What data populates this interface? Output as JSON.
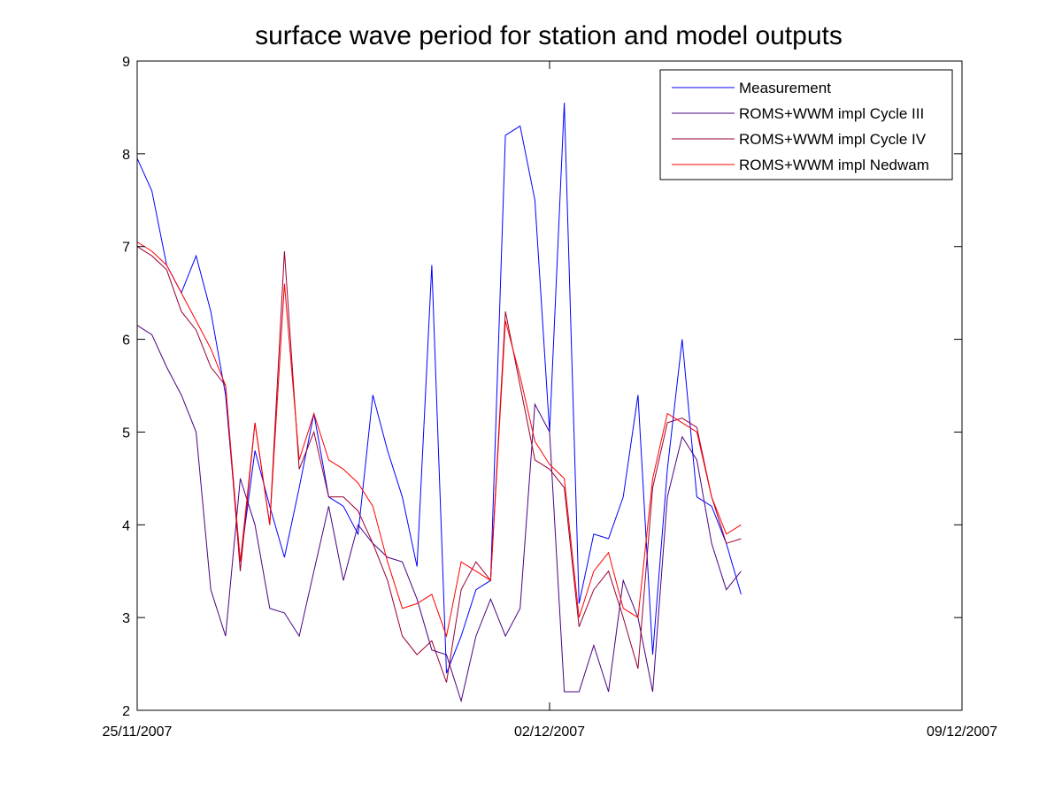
{
  "chart_data": {
    "type": "line",
    "title": "surface wave period for station and model outputs",
    "xlabel": "",
    "ylabel": "",
    "xlim": [
      "2007-11-25",
      "2007-12-09"
    ],
    "ylim": [
      2,
      9
    ],
    "x_ticks": [
      "25/11/2007",
      "02/12/2007",
      "09/12/2007"
    ],
    "y_ticks": [
      "2",
      "3",
      "4",
      "5",
      "6",
      "7",
      "8",
      "9"
    ],
    "grid": false,
    "legend_position": "top-right",
    "series": [
      {
        "name": "Measurement",
        "color": "#0000ff",
        "x": [
          "2007-11-25 00:00",
          "2007-11-25 06:00",
          "2007-11-25 12:00",
          "2007-11-25 18:00",
          "2007-11-26 00:00",
          "2007-11-26 06:00",
          "2007-11-26 12:00",
          "2007-11-26 18:00",
          "2007-11-27 00:00",
          "2007-11-27 06:00",
          "2007-11-27 12:00",
          "2007-11-27 18:00",
          "2007-11-28 00:00",
          "2007-11-28 06:00",
          "2007-11-28 12:00",
          "2007-11-28 18:00",
          "2007-11-29 00:00",
          "2007-11-29 06:00",
          "2007-11-29 12:00",
          "2007-11-29 18:00",
          "2007-11-30 00:00",
          "2007-11-30 06:00",
          "2007-11-30 12:00",
          "2007-11-30 18:00",
          "2007-12-01 00:00",
          "2007-12-01 06:00",
          "2007-12-01 12:00",
          "2007-12-01 18:00",
          "2007-12-02 00:00",
          "2007-12-02 06:00",
          "2007-12-02 12:00",
          "2007-12-02 18:00",
          "2007-12-03 00:00",
          "2007-12-03 06:00",
          "2007-12-03 12:00",
          "2007-12-03 18:00",
          "2007-12-04 00:00",
          "2007-12-04 06:00",
          "2007-12-04 12:00",
          "2007-12-04 18:00",
          "2007-12-05 00:00",
          "2007-12-05 06:00"
        ],
        "values": [
          7.95,
          7.6,
          6.8,
          6.5,
          6.9,
          6.3,
          5.4,
          3.6,
          4.8,
          4.2,
          3.65,
          4.4,
          5.2,
          4.3,
          4.2,
          3.9,
          5.4,
          4.8,
          4.3,
          3.55,
          6.8,
          2.4,
          2.8,
          3.3,
          3.4,
          8.2,
          8.3,
          7.5,
          5.0,
          8.55,
          3.15,
          3.9,
          3.85,
          4.3,
          5.4,
          2.6,
          4.6,
          6.0,
          4.3,
          4.2,
          3.8,
          3.25
        ]
      },
      {
        "name": "ROMS+WWM impl Cycle III",
        "color": "#4b0082",
        "x": [
          "2007-11-25 00:00",
          "2007-11-25 06:00",
          "2007-11-25 12:00",
          "2007-11-25 18:00",
          "2007-11-26 00:00",
          "2007-11-26 06:00",
          "2007-11-26 12:00",
          "2007-11-26 18:00",
          "2007-11-27 00:00",
          "2007-11-27 06:00",
          "2007-11-27 12:00",
          "2007-11-27 18:00",
          "2007-11-28 00:00",
          "2007-11-28 06:00",
          "2007-11-28 12:00",
          "2007-11-28 18:00",
          "2007-11-29 00:00",
          "2007-11-29 06:00",
          "2007-11-29 12:00",
          "2007-11-29 18:00",
          "2007-11-30 00:00",
          "2007-11-30 06:00",
          "2007-11-30 12:00",
          "2007-11-30 18:00",
          "2007-12-01 00:00",
          "2007-12-01 06:00",
          "2007-12-01 12:00",
          "2007-12-01 18:00",
          "2007-12-02 00:00",
          "2007-12-02 06:00",
          "2007-12-02 12:00",
          "2007-12-02 18:00",
          "2007-12-03 00:00",
          "2007-12-03 06:00",
          "2007-12-03 12:00",
          "2007-12-03 18:00",
          "2007-12-04 00:00",
          "2007-12-04 06:00",
          "2007-12-04 12:00",
          "2007-12-04 18:00",
          "2007-12-05 00:00",
          "2007-12-05 06:00"
        ],
        "values": [
          6.15,
          6.05,
          5.7,
          5.4,
          5.0,
          3.3,
          2.8,
          4.5,
          4.0,
          3.1,
          3.05,
          2.8,
          3.5,
          4.2,
          3.4,
          4.0,
          3.8,
          3.65,
          3.6,
          3.2,
          2.65,
          2.6,
          2.1,
          2.8,
          3.2,
          2.8,
          3.1,
          5.3,
          5.0,
          2.2,
          2.2,
          2.7,
          2.2,
          3.4,
          3.0,
          2.2,
          4.3,
          4.95,
          4.7,
          3.8,
          3.3,
          3.5
        ]
      },
      {
        "name": "ROMS+WWM impl Cycle IV",
        "color": "#990033",
        "x": [
          "2007-11-25 00:00",
          "2007-11-25 06:00",
          "2007-11-25 12:00",
          "2007-11-25 18:00",
          "2007-11-26 00:00",
          "2007-11-26 06:00",
          "2007-11-26 12:00",
          "2007-11-26 18:00",
          "2007-11-27 00:00",
          "2007-11-27 06:00",
          "2007-11-27 12:00",
          "2007-11-27 18:00",
          "2007-11-28 00:00",
          "2007-11-28 06:00",
          "2007-11-28 12:00",
          "2007-11-28 18:00",
          "2007-11-29 00:00",
          "2007-11-29 06:00",
          "2007-11-29 12:00",
          "2007-11-29 18:00",
          "2007-11-30 00:00",
          "2007-11-30 06:00",
          "2007-11-30 12:00",
          "2007-11-30 18:00",
          "2007-12-01 00:00",
          "2007-12-01 06:00",
          "2007-12-01 12:00",
          "2007-12-01 18:00",
          "2007-12-02 00:00",
          "2007-12-02 06:00",
          "2007-12-02 12:00",
          "2007-12-02 18:00",
          "2007-12-03 00:00",
          "2007-12-03 06:00",
          "2007-12-03 12:00",
          "2007-12-03 18:00",
          "2007-12-04 00:00",
          "2007-12-04 06:00",
          "2007-12-04 12:00",
          "2007-12-04 18:00",
          "2007-12-05 00:00",
          "2007-12-05 06:00"
        ],
        "values": [
          7.0,
          6.9,
          6.75,
          6.3,
          6.1,
          5.7,
          5.5,
          3.5,
          5.1,
          4.0,
          6.95,
          4.6,
          5.0,
          4.3,
          4.3,
          4.15,
          3.8,
          3.4,
          2.8,
          2.6,
          2.75,
          2.3,
          3.3,
          3.6,
          3.4,
          6.3,
          5.5,
          4.7,
          4.6,
          4.4,
          2.9,
          3.3,
          3.5,
          3.0,
          2.45,
          4.4,
          5.1,
          5.15,
          5.05,
          4.3,
          3.8,
          3.85
        ]
      },
      {
        "name": "ROMS+WWM impl Nedwam",
        "color": "#ff0000",
        "x": [
          "2007-11-25 00:00",
          "2007-11-25 06:00",
          "2007-11-25 12:00",
          "2007-11-25 18:00",
          "2007-11-26 00:00",
          "2007-11-26 06:00",
          "2007-11-26 12:00",
          "2007-11-26 18:00",
          "2007-11-27 00:00",
          "2007-11-27 06:00",
          "2007-11-27 12:00",
          "2007-11-27 18:00",
          "2007-11-28 00:00",
          "2007-11-28 06:00",
          "2007-11-28 12:00",
          "2007-11-28 18:00",
          "2007-11-29 00:00",
          "2007-11-29 06:00",
          "2007-11-29 12:00",
          "2007-11-29 18:00",
          "2007-11-30 00:00",
          "2007-11-30 06:00",
          "2007-11-30 12:00",
          "2007-11-30 18:00",
          "2007-12-01 00:00",
          "2007-12-01 06:00",
          "2007-12-01 12:00",
          "2007-12-01 18:00",
          "2007-12-02 00:00",
          "2007-12-02 06:00",
          "2007-12-02 12:00",
          "2007-12-02 18:00",
          "2007-12-03 00:00",
          "2007-12-03 06:00",
          "2007-12-03 12:00",
          "2007-12-03 18:00",
          "2007-12-04 00:00",
          "2007-12-04 06:00",
          "2007-12-04 12:00",
          "2007-12-04 18:00",
          "2007-12-05 00:00",
          "2007-12-05 06:00"
        ],
        "values": [
          7.05,
          6.95,
          6.8,
          6.5,
          6.2,
          5.9,
          5.5,
          3.6,
          5.1,
          4.0,
          6.6,
          4.7,
          5.2,
          4.7,
          4.6,
          4.45,
          4.2,
          3.6,
          3.1,
          3.15,
          3.25,
          2.8,
          3.6,
          3.5,
          3.4,
          6.2,
          5.6,
          4.9,
          4.65,
          4.5,
          3.0,
          3.5,
          3.7,
          3.1,
          3.0,
          4.5,
          5.2,
          5.1,
          5.0,
          4.3,
          3.9,
          4.0
        ]
      }
    ]
  }
}
